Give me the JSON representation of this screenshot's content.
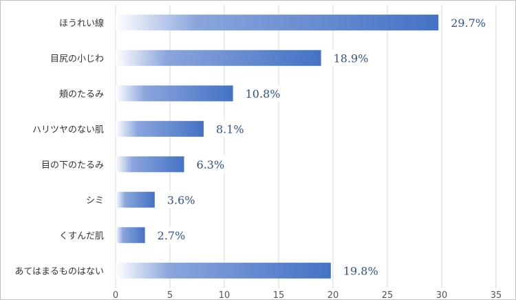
{
  "chart_data": {
    "type": "bar",
    "orientation": "horizontal",
    "title": "",
    "xlabel": "",
    "ylabel": "",
    "categories": [
      "ほうれい線",
      "目尻の小じわ",
      "頬のたるみ",
      "ハリツヤのない肌",
      "目の下のたるみ",
      "シミ",
      "くすんだ肌",
      "あてはまるものはない"
    ],
    "values": [
      29.7,
      18.9,
      10.8,
      8.1,
      6.3,
      3.6,
      2.7,
      19.8
    ],
    "data_labels": [
      "29.7%",
      "18.9%",
      "10.8%",
      "8.1%",
      "6.3%",
      "3.6%",
      "2.7%",
      "19.8%"
    ],
    "xlim": [
      0,
      35
    ],
    "ticks": [
      0,
      5,
      10,
      15,
      20,
      25,
      30,
      35
    ],
    "tick_labels": [
      "0",
      "5",
      "10",
      "15",
      "20",
      "25",
      "30",
      "35"
    ],
    "grid": true,
    "legend": "none",
    "bar_color": "#4472c4",
    "bar_gradient_start": "#ffffff"
  }
}
